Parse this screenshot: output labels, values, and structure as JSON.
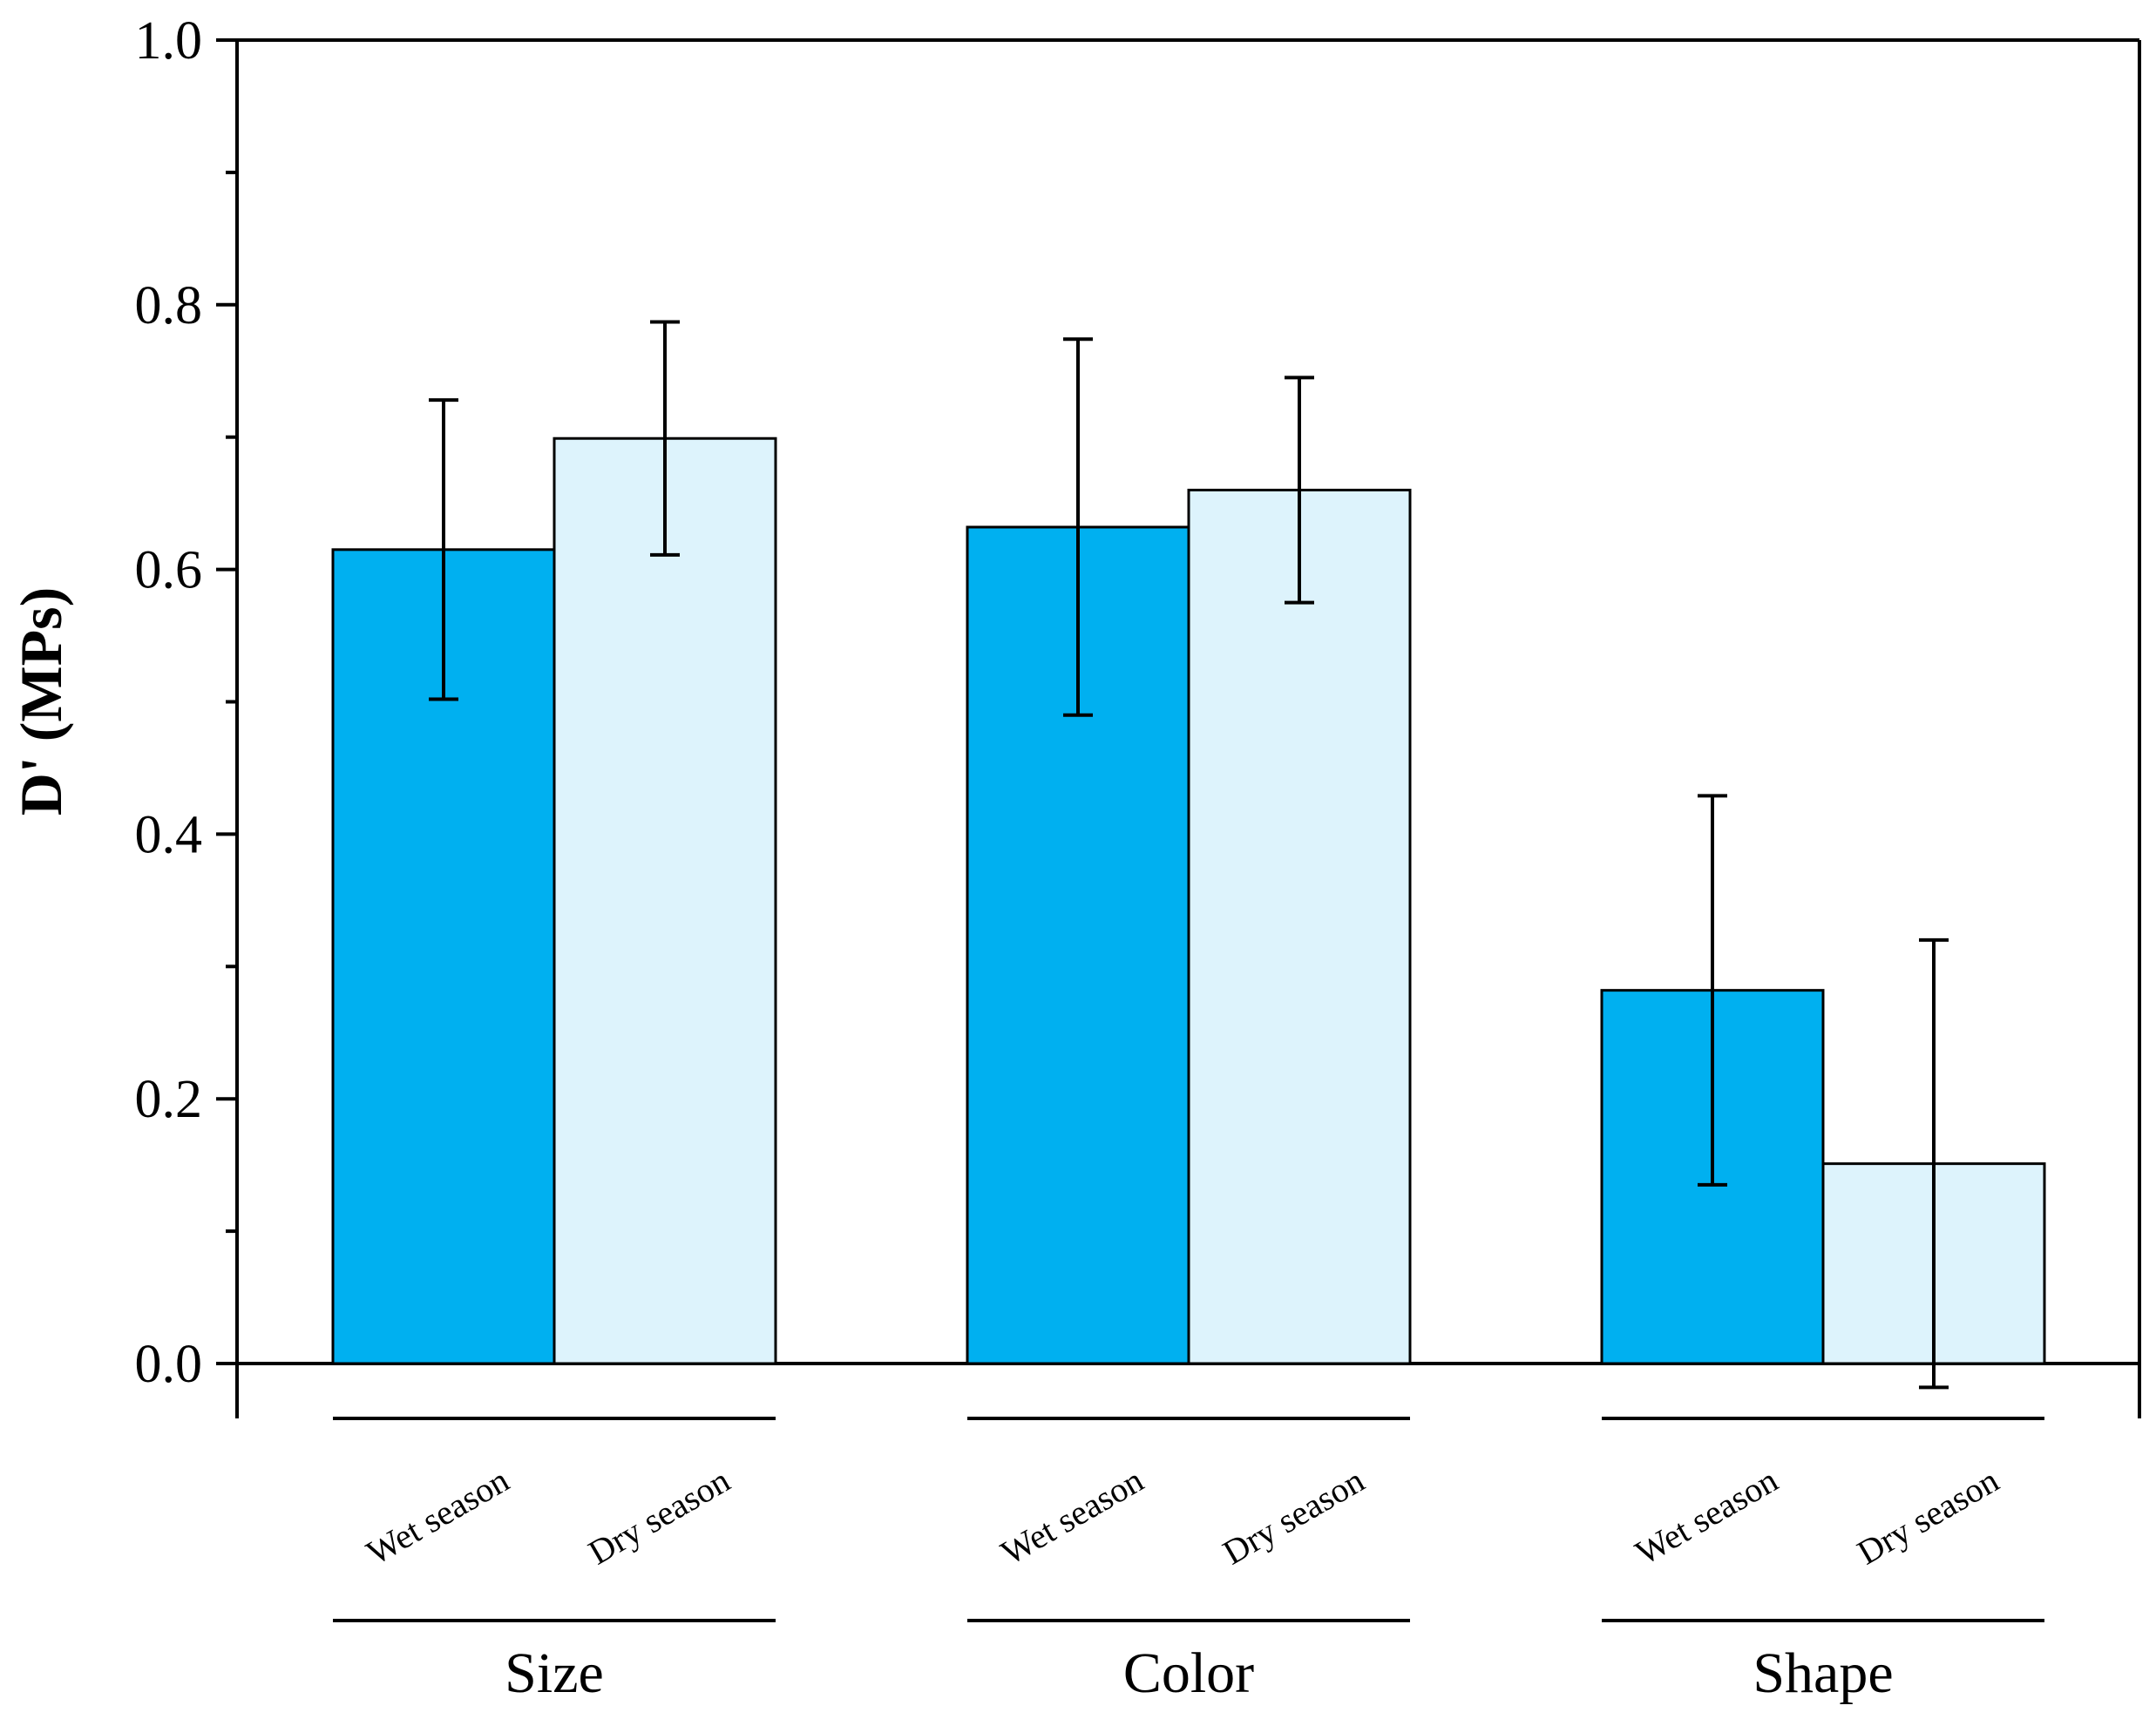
{
  "chart_data": {
    "type": "bar",
    "title": "",
    "xlabel": "",
    "ylabel": "D' (MPs)",
    "ylim": [
      0,
      1.0
    ],
    "yticks": [
      "0.0",
      "0.2",
      "0.4",
      "0.6",
      "0.8",
      "1.0"
    ],
    "grid": false,
    "groups": [
      "Size",
      "Color",
      "Shape"
    ],
    "series": [
      {
        "name": "Wet season",
        "color": "#00B0F0",
        "values": [
          0.615,
          0.632,
          0.282
        ],
        "error": [
          0.113,
          0.142,
          0.147
        ]
      },
      {
        "name": "Dry season",
        "color": "#DDF3FC",
        "values": [
          0.699,
          0.66,
          0.151
        ],
        "error": [
          0.088,
          0.085,
          0.169
        ]
      }
    ]
  }
}
